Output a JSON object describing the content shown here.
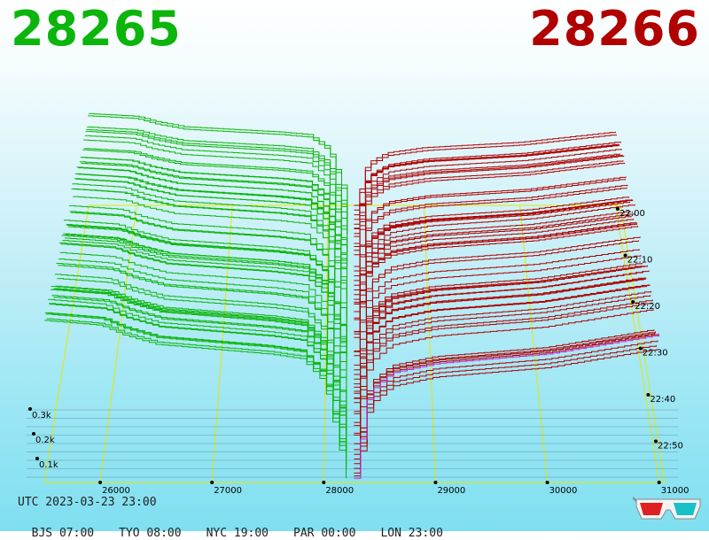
{
  "header": {
    "left_price": "28265",
    "right_price": "28266",
    "left_color": "#0bb50b",
    "right_color": "#b00000"
  },
  "footer": {
    "utc": "UTC 2023-03-23 23:00",
    "zones": [
      "BJS 07:00",
      "TYO 08:00",
      "NYC 19:00",
      "PAR 00:00",
      "LON 23:00"
    ]
  },
  "icon": "3d-glasses-icon",
  "chart_data": {
    "type": "area",
    "x_axis": {
      "min": 25500,
      "max": 31050,
      "ticks": [
        "26000",
        "27000",
        "28000",
        "29000",
        "30000",
        "31000"
      ],
      "tick_values": [
        26000,
        27000,
        28000,
        29000,
        30000,
        31000
      ]
    },
    "depth_axis": {
      "ticks": [
        "0.1k",
        "0.2k",
        "0.3k"
      ],
      "tick_values": [
        0.1,
        0.2,
        0.3
      ]
    },
    "time_axis": {
      "ticks": [
        "22:00",
        "22:10",
        "22:20",
        "22:30",
        "22:40",
        "22:50"
      ]
    },
    "mid_price": 28265.5,
    "series": [
      {
        "side": "bids",
        "color": "#0bb50b",
        "x": [
          25500,
          26000,
          26200,
          26500,
          27000,
          27500,
          27800,
          28000,
          28200
        ],
        "depth": [
          0.33,
          0.32,
          0.3,
          0.28,
          0.27,
          0.26,
          0.25,
          0.2,
          0.0
        ]
      },
      {
        "side": "asks",
        "color": "#b00000",
        "x": [
          28270,
          28400,
          28600,
          29000,
          29500,
          30000,
          30500,
          31000
        ],
        "depth": [
          0.0,
          0.18,
          0.22,
          0.24,
          0.25,
          0.26,
          0.28,
          0.3
        ]
      }
    ],
    "grid": true
  }
}
